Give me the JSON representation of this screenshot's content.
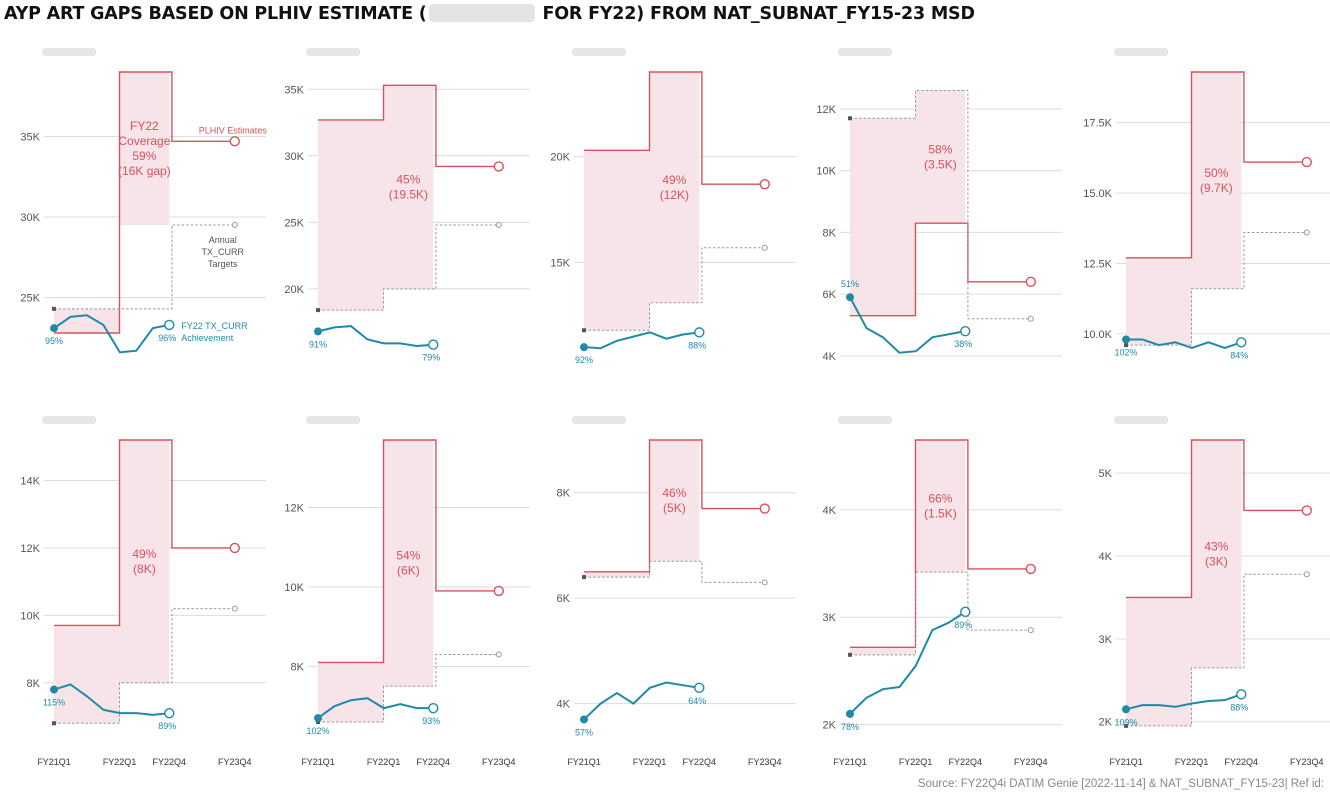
{
  "title_before": "AYP ART GAPS BASED ON PLHIV ESTIMATE (",
  "title_after": " FOR FY22) FROM NAT_SUBNAT_FY15-23 MSD",
  "footer": "Source: FY22Q4i DATIM Genie [2022-11-14]  & NAT_SUBNAT_FY15-23| Ref id:",
  "colors": {
    "plhiv": "#d9515d",
    "gap_fill": "#f6e4e8",
    "tx": "#1f8aa7",
    "target": "#999999",
    "grid": "#dcdcdc",
    "axis_text": "#555555"
  },
  "annotations": {
    "plhiv": "PLHIV Estimates",
    "targets": [
      "Annual",
      "TX_CURR",
      "Targets"
    ],
    "achievement": [
      "FY22 TX_CURR",
      "Achievement"
    ],
    "coverage_lines": [
      "FY22",
      "Coverage",
      "59%",
      "(16K gap)"
    ]
  },
  "chart_data": [
    {
      "type": "line",
      "panel_name_redacted": true,
      "x_labels": [
        "FY21Q1",
        "FY22Q1",
        "FY22Q4",
        "FY23Q4"
      ],
      "yticks": [
        25000,
        30000,
        35000
      ],
      "tick_labels": [
        "25K",
        "30K",
        "35K"
      ],
      "ylim": [
        21000,
        39000
      ],
      "plhiv": [
        22800,
        39000,
        34700
      ],
      "targets": [
        24300,
        29500
      ],
      "tx_values": [
        23100,
        23800,
        23900,
        23300,
        21600,
        21700,
        23100,
        23300
      ],
      "tx_start_label": "95%",
      "tx_end_label": "96%",
      "gap_label": [
        "FY22",
        "Coverage",
        "59%",
        "(16K gap)"
      ]
    },
    {
      "type": "line",
      "panel_name_redacted": true,
      "x_labels": [
        "FY21Q1",
        "FY22Q1",
        "FY22Q4",
        "FY23Q4"
      ],
      "yticks": [
        20000,
        25000,
        30000,
        35000
      ],
      "tick_labels": [
        "20K",
        "25K",
        "30K",
        "35K"
      ],
      "ylim": [
        14500,
        36300
      ],
      "plhiv": [
        32700,
        35300,
        29200
      ],
      "targets": [
        18400,
        20000,
        24800
      ],
      "tx_values": [
        16800,
        17100,
        17200,
        16200,
        15900,
        15900,
        15700,
        15800
      ],
      "tx_start_label": "91%",
      "tx_end_label": "79%",
      "gap_label": [
        "45%",
        "(19.5K)"
      ]
    },
    {
      "type": "line",
      "panel_name_redacted": true,
      "x_labels": [
        "FY21Q1",
        "FY22Q1",
        "FY22Q4",
        "FY23Q4"
      ],
      "yticks": [
        15000,
        20000
      ],
      "tick_labels": [
        "15K",
        "20K"
      ],
      "ylim": [
        10300,
        24000
      ],
      "plhiv": [
        20300,
        24000,
        18700
      ],
      "targets": [
        11800,
        13100,
        15700
      ],
      "tx_values": [
        11000,
        10950,
        11300,
        11500,
        11700,
        11400,
        11600,
        11700
      ],
      "tx_start_label": "92%",
      "tx_end_label": "88%",
      "gap_label": [
        "49%",
        "(12K)"
      ]
    },
    {
      "type": "line",
      "panel_name_redacted": true,
      "x_labels": [
        "FY21Q1",
        "FY22Q1",
        "FY22Q4",
        "FY23Q4"
      ],
      "yticks": [
        4000,
        6000,
        8000,
        10000,
        12000
      ],
      "tick_labels": [
        "4K",
        "6K",
        "8K",
        "10K",
        "12K"
      ],
      "ylim": [
        3800,
        13200
      ],
      "plhiv": [
        5300,
        8300,
        6400
      ],
      "targets": [
        11700,
        12600,
        5200
      ],
      "tx_values": [
        5900,
        4900,
        4600,
        4100,
        4150,
        4600,
        4700,
        4800
      ],
      "tx_start_label": "51%",
      "tx_end_label": "38%",
      "gap_label": [
        "58%",
        "(3.5K)"
      ]
    },
    {
      "type": "line",
      "panel_name_redacted": true,
      "x_labels": [
        "FY21Q1",
        "FY22Q1",
        "FY22Q4",
        "FY23Q4"
      ],
      "yticks": [
        10000,
        12500,
        15000,
        17500
      ],
      "tick_labels": [
        "10.0K",
        "12.5K",
        "15.0K",
        "17.5K"
      ],
      "ylim": [
        9000,
        19300
      ],
      "plhiv": [
        12700,
        19300,
        16100
      ],
      "targets": [
        9600,
        11600,
        13600
      ],
      "tx_values": [
        9800,
        9800,
        9600,
        9700,
        9500,
        9700,
        9500,
        9700
      ],
      "tx_start_label": "102%",
      "tx_end_label": "84%",
      "gap_label": [
        "50%",
        "(9.7K)"
      ]
    },
    {
      "type": "line",
      "panel_name_redacted": true,
      "x_labels": [
        "FY21Q1",
        "FY22Q1",
        "FY22Q4",
        "FY23Q4"
      ],
      "yticks": [
        8000,
        10000,
        12000,
        14000
      ],
      "tick_labels": [
        "8K",
        "10K",
        "12K",
        "14K"
      ],
      "ylim": [
        6600,
        15200
      ],
      "plhiv": [
        9700,
        15200,
        12000
      ],
      "targets": [
        6800,
        8000,
        10200
      ],
      "tx_values": [
        7800,
        7950,
        7600,
        7200,
        7100,
        7100,
        7050,
        7100
      ],
      "tx_start_label": "115%",
      "tx_end_label": "89%",
      "gap_label": [
        "49%",
        "(8K)"
      ]
    },
    {
      "type": "line",
      "panel_name_redacted": true,
      "x_labels": [
        "FY21Q1",
        "FY22Q1",
        "FY22Q4",
        "FY23Q4"
      ],
      "yticks": [
        8000,
        10000,
        12000
      ],
      "tick_labels": [
        "8K",
        "10K",
        "12K"
      ],
      "ylim": [
        6400,
        13700
      ],
      "plhiv": [
        8100,
        13700,
        9900
      ],
      "targets": [
        6600,
        7500,
        8300
      ],
      "tx_values": [
        6700,
        7000,
        7150,
        7200,
        6950,
        7050,
        6950,
        6950
      ],
      "tx_start_label": "102%",
      "tx_end_label": "93%",
      "gap_label": [
        "54%",
        "(6K)"
      ]
    },
    {
      "type": "line",
      "panel_name_redacted": true,
      "x_labels": [
        "FY21Q1",
        "FY22Q1",
        "FY22Q4",
        "FY23Q4"
      ],
      "yticks": [
        4000,
        6000,
        8000
      ],
      "tick_labels": [
        "4K",
        "6K",
        "8K"
      ],
      "ylim": [
        3500,
        9000
      ],
      "plhiv": [
        6500,
        9000,
        7700
      ],
      "targets": [
        6400,
        6700,
        6300
      ],
      "tx_values": [
        3700,
        4000,
        4200,
        4000,
        4300,
        4400,
        4350,
        4300
      ],
      "tx_start_label": "57%",
      "tx_end_label": "64%",
      "gap_label": [
        "46%",
        "(5K)"
      ]
    },
    {
      "type": "line",
      "panel_name_redacted": true,
      "x_labels": [
        "FY21Q1",
        "FY22Q1",
        "FY22Q4",
        "FY23Q4"
      ],
      "yticks": [
        2000,
        3000,
        4000
      ],
      "tick_labels": [
        "2K",
        "3K",
        "4K"
      ],
      "ylim": [
        1950,
        4650
      ],
      "plhiv": [
        2720,
        4650,
        3450
      ],
      "targets": [
        2650,
        3420,
        2880
      ],
      "tx_values": [
        2100,
        2250,
        2330,
        2350,
        2550,
        2880,
        2950,
        3050
      ],
      "tx_start_label": "78%",
      "tx_end_label": "89%",
      "gap_label": [
        "66%",
        "(1.5K)"
      ]
    },
    {
      "type": "line",
      "panel_name_redacted": true,
      "x_labels": [
        "FY21Q1",
        "FY22Q1",
        "FY22Q4",
        "FY23Q4"
      ],
      "yticks": [
        2000,
        3000,
        4000,
        5000
      ],
      "tick_labels": [
        "2K",
        "3K",
        "4K",
        "5K"
      ],
      "ylim": [
        1900,
        5400
      ],
      "plhiv": [
        3500,
        5400,
        4550
      ],
      "targets": [
        1950,
        2650,
        3780
      ],
      "tx_values": [
        2150,
        2200,
        2200,
        2180,
        2220,
        2250,
        2260,
        2330
      ],
      "tx_start_label": "109%",
      "tx_end_label": "88%",
      "gap_label": [
        "43%",
        "(3K)"
      ]
    }
  ]
}
